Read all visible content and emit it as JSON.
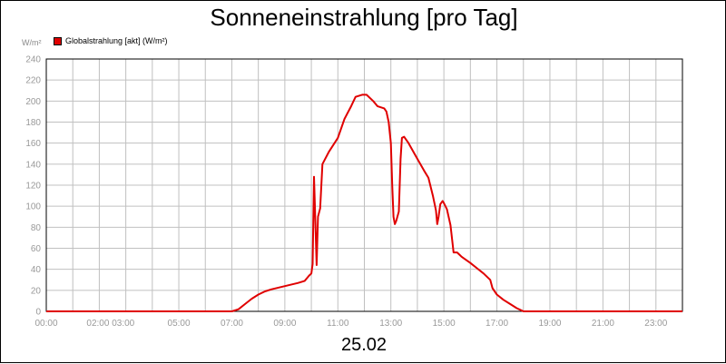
{
  "title": "Sonneneinstrahlung [pro Tag]",
  "date_label": "25.02",
  "ylabel": "W/m²",
  "colors": {
    "series": "#e00000",
    "grid": "#c0c0c0",
    "axis": "#000000",
    "tick_text": "#999999"
  },
  "chart_data": {
    "type": "line",
    "title": "Sonneneinstrahlung [pro Tag]",
    "xlabel": "25.02",
    "ylabel": "W/m²",
    "ylim": [
      0,
      240
    ],
    "xlim": [
      "00:00",
      "24:00"
    ],
    "grid": true,
    "legend_position": "top-left",
    "yticks": [
      0,
      20,
      40,
      60,
      80,
      100,
      120,
      140,
      160,
      180,
      200,
      220,
      240
    ],
    "xtick_labels": [
      "00:00",
      "02:00 03:00",
      "05:00",
      "07:00",
      "09:00",
      "11:00",
      "13:00",
      "15:00",
      "17:00",
      "19:00",
      "21:00",
      "23:00"
    ],
    "series": [
      {
        "name": "Globalstrahlung [akt] (W/m²)",
        "color": "#e00000",
        "points": [
          [
            "00:00",
            0
          ],
          [
            "07:00",
            0
          ],
          [
            "07:15",
            2
          ],
          [
            "07:30",
            7
          ],
          [
            "07:45",
            12
          ],
          [
            "08:00",
            16
          ],
          [
            "08:15",
            19
          ],
          [
            "08:30",
            21
          ],
          [
            "09:00",
            24
          ],
          [
            "09:30",
            27
          ],
          [
            "09:45",
            29
          ],
          [
            "09:55",
            34
          ],
          [
            "10:00",
            36
          ],
          [
            "10:03",
            45
          ],
          [
            "10:06",
            128
          ],
          [
            "10:08",
            100
          ],
          [
            "10:12",
            44
          ],
          [
            "10:15",
            90
          ],
          [
            "10:20",
            98
          ],
          [
            "10:25",
            140
          ],
          [
            "10:40",
            152
          ],
          [
            "11:00",
            165
          ],
          [
            "11:15",
            183
          ],
          [
            "11:30",
            195
          ],
          [
            "11:40",
            204
          ],
          [
            "11:55",
            206
          ],
          [
            "12:05",
            206
          ],
          [
            "12:20",
            200
          ],
          [
            "12:30",
            195
          ],
          [
            "12:45",
            193
          ],
          [
            "12:50",
            190
          ],
          [
            "12:55",
            180
          ],
          [
            "13:00",
            160
          ],
          [
            "13:03",
            120
          ],
          [
            "13:06",
            90
          ],
          [
            "13:09",
            83
          ],
          [
            "13:12",
            86
          ],
          [
            "13:18",
            95
          ],
          [
            "13:22",
            145
          ],
          [
            "13:25",
            165
          ],
          [
            "13:30",
            166
          ],
          [
            "13:40",
            160
          ],
          [
            "14:00",
            145
          ],
          [
            "14:15",
            134
          ],
          [
            "14:25",
            127
          ],
          [
            "14:35",
            110
          ],
          [
            "14:42",
            96
          ],
          [
            "14:45",
            83
          ],
          [
            "14:48",
            90
          ],
          [
            "14:52",
            102
          ],
          [
            "14:57",
            105
          ],
          [
            "15:00",
            103
          ],
          [
            "15:07",
            97
          ],
          [
            "15:15",
            82
          ],
          [
            "15:20",
            63
          ],
          [
            "15:22",
            56
          ],
          [
            "15:30",
            56
          ],
          [
            "15:40",
            52
          ],
          [
            "16:00",
            46
          ],
          [
            "16:15",
            41
          ],
          [
            "16:30",
            36
          ],
          [
            "16:45",
            30
          ],
          [
            "16:50",
            22
          ],
          [
            "17:00",
            16
          ],
          [
            "17:15",
            11
          ],
          [
            "17:30",
            7
          ],
          [
            "17:45",
            3
          ],
          [
            "17:55",
            1
          ],
          [
            "18:00",
            0
          ],
          [
            "24:00",
            0
          ]
        ]
      }
    ]
  }
}
